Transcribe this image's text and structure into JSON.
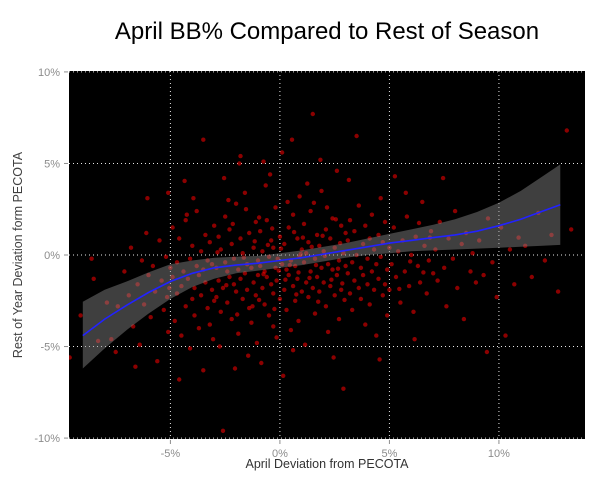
{
  "title": "April BB% Compared to Rest of Season",
  "chart_data": {
    "type": "scatter",
    "title": "April BB% Compared to Rest of Season",
    "xlabel": "April Deviation from PECOTA",
    "ylabel": "Rest of Year Deviation form PECOTA",
    "xlim": [
      -9.63,
      13.93
    ],
    "ylim": [
      -10.05,
      10.05
    ],
    "x_ticks": [
      {
        "value": -5,
        "label": "-5%"
      },
      {
        "value": 0,
        "label": "0%"
      },
      {
        "value": 5,
        "label": "5%"
      },
      {
        "value": 10,
        "label": "10%"
      }
    ],
    "y_ticks": [
      {
        "value": 10,
        "label": "10%"
      },
      {
        "value": 5,
        "label": "5%"
      },
      {
        "value": 0,
        "label": "0%"
      },
      {
        "value": -5,
        "label": "-5%"
      },
      {
        "value": -10,
        "label": "-10%"
      }
    ],
    "grid": "major-dotted-white",
    "legend": "none",
    "panel_background": "black",
    "smooth": {
      "type": "loess",
      "x": [
        -9.0,
        -8,
        -7,
        -6,
        -5,
        -4,
        -3,
        -2,
        -1,
        0,
        1,
        2,
        3,
        4,
        5,
        6,
        7,
        8,
        9,
        10,
        11,
        12,
        12.8
      ],
      "y": [
        -4.4,
        -3.5,
        -2.75,
        -2.05,
        -1.45,
        -1.0,
        -0.7,
        -0.55,
        -0.45,
        -0.3,
        -0.15,
        0.05,
        0.25,
        0.45,
        0.65,
        0.8,
        0.95,
        1.1,
        1.3,
        1.6,
        1.95,
        2.4,
        2.75
      ],
      "upper": [
        -2.55,
        -1.9,
        -1.45,
        -0.95,
        -0.5,
        -0.3,
        -0.15,
        -0.1,
        -0.05,
        0.1,
        0.25,
        0.45,
        0.65,
        0.9,
        1.15,
        1.4,
        1.65,
        1.95,
        2.35,
        2.85,
        3.5,
        4.3,
        4.95
      ],
      "lower": [
        -6.2,
        -5.1,
        -4.1,
        -3.2,
        -2.4,
        -1.75,
        -1.3,
        -1.0,
        -0.85,
        -0.7,
        -0.55,
        -0.35,
        -0.15,
        0.0,
        0.1,
        0.2,
        0.25,
        0.3,
        0.35,
        0.4,
        0.45,
        0.5,
        0.55
      ]
    },
    "points": [
      [
        -9.6,
        -5.6
      ],
      [
        -9.1,
        -3.3
      ],
      [
        -8.6,
        -0.2
      ],
      [
        -8.5,
        -1.3
      ],
      [
        -8.3,
        -4.7
      ],
      [
        -7.9,
        -2.6
      ],
      [
        -7.7,
        -4.6
      ],
      [
        -7.5,
        -5.3
      ],
      [
        -7.4,
        -2.8
      ],
      [
        -7.1,
        -0.9
      ],
      [
        -6.9,
        -2.2
      ],
      [
        -6.8,
        0.4
      ],
      [
        -6.7,
        -3.9
      ],
      [
        -6.6,
        -6.1
      ],
      [
        -6.5,
        -1.6
      ],
      [
        -6.4,
        -4.9
      ],
      [
        -6.3,
        -0.3
      ],
      [
        -6.2,
        -2.7
      ],
      [
        -6.1,
        1.2
      ],
      [
        -6.05,
        3.1
      ],
      [
        -6.0,
        -1.1
      ],
      [
        -5.9,
        -3.4
      ],
      [
        -5.8,
        -0.6
      ],
      [
        -5.7,
        -2.0
      ],
      [
        -5.6,
        -5.8
      ],
      [
        -5.5,
        0.8
      ],
      [
        -5.4,
        -1.4
      ],
      [
        -5.3,
        -3.0
      ],
      [
        -5.2,
        -0.1
      ],
      [
        -5.15,
        -2.3
      ],
      [
        -5.1,
        -4.2
      ],
      [
        -5.1,
        3.4
      ],
      [
        -5.05,
        -1.8
      ],
      [
        -5.0,
        -0.7
      ],
      [
        -4.9,
        -1.2
      ],
      [
        -4.9,
        1.5
      ],
      [
        -4.8,
        -3.6
      ],
      [
        -4.7,
        -0.4
      ],
      [
        -4.7,
        -2.1
      ],
      [
        -4.6,
        0.9
      ],
      [
        -4.6,
        -6.8
      ],
      [
        -4.5,
        -1.7
      ],
      [
        -4.5,
        -4.4
      ],
      [
        -4.4,
        -0.9
      ],
      [
        -4.35,
        4.05
      ],
      [
        -4.3,
        -2.8
      ],
      [
        -4.3,
        1.9
      ],
      [
        -4.25,
        2.2
      ],
      [
        -4.2,
        -1.3
      ],
      [
        -4.1,
        -0.2
      ],
      [
        -4.1,
        -5.1
      ],
      [
        -4.0,
        -2.4
      ],
      [
        -4.0,
        0.5
      ],
      [
        -3.95,
        3.1
      ],
      [
        -3.9,
        -1.8
      ],
      [
        -3.9,
        -3.3
      ],
      [
        -3.8,
        -0.6
      ],
      [
        -3.8,
        2.4
      ],
      [
        -3.7,
        -1.1
      ],
      [
        -3.7,
        -4.0
      ],
      [
        -3.6,
        0.2
      ],
      [
        -3.6,
        -2.2
      ],
      [
        -3.5,
        -0.8
      ],
      [
        -3.5,
        -6.3
      ],
      [
        -3.5,
        6.3
      ],
      [
        -3.4,
        1.1
      ],
      [
        -3.4,
        -1.5
      ],
      [
        -3.3,
        -2.9
      ],
      [
        -3.3,
        -0.3
      ],
      [
        -3.2,
        -3.8
      ],
      [
        -3.2,
        0.7
      ],
      [
        -3.1,
        -1.9
      ],
      [
        -3.1,
        -0.5
      ],
      [
        -3.05,
        -4.6
      ],
      [
        -3.0,
        -2.5
      ],
      [
        -3.0,
        1.6
      ],
      [
        -2.9,
        -0.7
      ],
      [
        -2.9,
        -2.3
      ],
      [
        -2.85,
        0.15
      ],
      [
        -2.8,
        1.0
      ],
      [
        -2.8,
        -1.4
      ],
      [
        -2.75,
        -5.0
      ],
      [
        -2.7,
        -3.1
      ],
      [
        -2.7,
        0.3
      ],
      [
        -2.6,
        -9.6
      ],
      [
        -2.6,
        -1.8
      ],
      [
        -2.55,
        4.2
      ],
      [
        -2.5,
        -0.4
      ],
      [
        -2.5,
        2.1
      ],
      [
        -2.45,
        -1.65
      ],
      [
        -2.4,
        -2.6
      ],
      [
        -2.4,
        -0.9
      ],
      [
        -2.35,
        3.0
      ],
      [
        -2.3,
        1.4
      ],
      [
        -2.3,
        -1.2
      ],
      [
        -2.2,
        -3.5
      ],
      [
        -2.2,
        0.6
      ],
      [
        -2.15,
        1.7
      ],
      [
        -2.1,
        -1.6
      ],
      [
        -2.1,
        -0.2
      ],
      [
        -2.05,
        -6.2
      ],
      [
        -2.0,
        -2.0
      ],
      [
        -2.0,
        2.8
      ],
      [
        -1.95,
        -3.25
      ],
      [
        -1.9,
        -0.8
      ],
      [
        -1.9,
        -4.3
      ],
      [
        -1.85,
        5.0
      ],
      [
        -1.8,
        0.9
      ],
      [
        -1.8,
        -1.3
      ],
      [
        -1.8,
        5.4
      ],
      [
        -1.7,
        -2.4
      ],
      [
        -1.7,
        0.1
      ],
      [
        -1.65,
        -0.15
      ],
      [
        -1.6,
        -1.0
      ],
      [
        -1.6,
        3.4
      ],
      [
        -1.55,
        2.5
      ],
      [
        -1.5,
        -1.9
      ],
      [
        -1.5,
        -0.5
      ],
      [
        -1.45,
        -5.5
      ],
      [
        -1.4,
        -2.9
      ],
      [
        -1.4,
        1.2
      ],
      [
        -1.3,
        -0.7
      ],
      [
        -1.3,
        -3.7
      ],
      [
        -1.25,
        -2.8
      ],
      [
        -1.2,
        0.4
      ],
      [
        -1.2,
        -1.5
      ],
      [
        -1.15,
        0.75
      ],
      [
        -1.1,
        -2.2
      ],
      [
        -1.1,
        1.8
      ],
      [
        -1.05,
        -4.8
      ],
      [
        -1.0,
        -0.3
      ],
      [
        -1.0,
        -1.1
      ],
      [
        -0.95,
        -2.45
      ],
      [
        -0.95,
        2.05
      ],
      [
        -0.9,
        -0.6
      ],
      [
        -0.9,
        1.3
      ],
      [
        -0.85,
        -5.9
      ],
      [
        -0.8,
        -1.8
      ],
      [
        -0.8,
        0.2
      ],
      [
        -0.75,
        -1.05
      ],
      [
        -0.75,
        5.1
      ],
      [
        -0.7,
        -2.7
      ],
      [
        -0.7,
        -0.9
      ],
      [
        -0.65,
        3.8
      ],
      [
        -0.6,
        1.9
      ],
      [
        -0.6,
        -1.2
      ],
      [
        -0.55,
        0.55
      ],
      [
        -0.5,
        -0.1
      ],
      [
        -0.5,
        -3.3
      ],
      [
        -0.45,
        4.4
      ],
      [
        -0.4,
        0.8
      ],
      [
        -0.4,
        -1.6
      ],
      [
        -0.35,
        1.45
      ],
      [
        -0.3,
        -2.1
      ],
      [
        -0.3,
        0.4
      ],
      [
        -0.3,
        -3.9
      ],
      [
        -0.25,
        -2.95
      ],
      [
        -0.2,
        -0.7
      ],
      [
        -0.2,
        2.6
      ],
      [
        -0.15,
        -1.4
      ],
      [
        -0.15,
        -4.5
      ],
      [
        -0.1,
        -0.2
      ],
      [
        -0.05,
        -0.85
      ],
      [
        0.0,
        1.0
      ],
      [
        0.0,
        -2.4
      ],
      [
        0.05,
        0.35
      ],
      [
        0.1,
        -0.5
      ],
      [
        0.1,
        5.6
      ],
      [
        0.15,
        -6.6
      ],
      [
        0.2,
        -1.9
      ],
      [
        0.2,
        0.6
      ],
      [
        0.25,
        -1.35
      ],
      [
        0.3,
        -3.0
      ],
      [
        0.3,
        -0.8
      ],
      [
        0.35,
        2.9
      ],
      [
        0.4,
        1.5
      ],
      [
        0.4,
        -1.1
      ],
      [
        0.45,
        -0.55
      ],
      [
        0.5,
        -0.3
      ],
      [
        0.5,
        -4.1
      ],
      [
        0.55,
        6.3
      ],
      [
        0.6,
        2.2
      ],
      [
        0.6,
        -1.7
      ],
      [
        0.6,
        -5.2
      ],
      [
        0.65,
        1.25
      ],
      [
        0.7,
        -0.6
      ],
      [
        0.7,
        -2.5
      ],
      [
        0.75,
        -2.15
      ],
      [
        0.8,
        0.9
      ],
      [
        0.8,
        -1.3
      ],
      [
        0.85,
        -3.6
      ],
      [
        0.85,
        -0.95
      ],
      [
        0.9,
        -0.1
      ],
      [
        0.9,
        3.2
      ],
      [
        0.95,
        0.05
      ],
      [
        1.0,
        -2.0
      ],
      [
        1.0,
        0.3
      ],
      [
        1.05,
        0.95
      ],
      [
        1.1,
        -0.4
      ],
      [
        1.1,
        1.7
      ],
      [
        1.15,
        -4.9
      ],
      [
        1.2,
        -1.5
      ],
      [
        1.2,
        0.1
      ],
      [
        1.25,
        3.9
      ],
      [
        1.3,
        -2.3
      ],
      [
        1.3,
        0.7
      ],
      [
        1.35,
        -1.25
      ],
      [
        1.4,
        -0.9
      ],
      [
        1.4,
        2.4
      ],
      [
        1.45,
        0.45
      ],
      [
        1.5,
        -1.8
      ],
      [
        1.5,
        7.7
      ],
      [
        1.55,
        2.85
      ],
      [
        1.6,
        -0.2
      ],
      [
        1.6,
        -3.2
      ],
      [
        1.65,
        -0.55
      ],
      [
        1.7,
        1.1
      ],
      [
        1.7,
        -1.2
      ],
      [
        1.75,
        -2.55
      ],
      [
        1.8,
        -2.0
      ],
      [
        1.8,
        0.5
      ],
      [
        1.85,
        5.2
      ],
      [
        1.9,
        -0.7
      ],
      [
        1.9,
        3.5
      ],
      [
        1.95,
        1.05
      ],
      [
        2.0,
        -1.5
      ],
      [
        2.0,
        0.2
      ],
      [
        2.05,
        -0.05
      ],
      [
        2.1,
        -2.8
      ],
      [
        2.1,
        1.4
      ],
      [
        2.15,
        2.6
      ],
      [
        2.2,
        -0.5
      ],
      [
        2.2,
        -4.2
      ],
      [
        2.3,
        0.9
      ],
      [
        2.3,
        -1.7
      ],
      [
        2.35,
        -1.35
      ],
      [
        2.4,
        2.0
      ],
      [
        2.4,
        -0.8
      ],
      [
        2.45,
        -5.6
      ],
      [
        2.5,
        -2.2
      ],
      [
        2.5,
        0.4
      ],
      [
        2.55,
        1.95
      ],
      [
        2.6,
        -1.1
      ],
      [
        2.6,
        4.6
      ],
      [
        2.65,
        -0.75
      ],
      [
        2.7,
        -0.3
      ],
      [
        2.7,
        -3.5
      ],
      [
        2.75,
        0.65
      ],
      [
        2.8,
        1.6
      ],
      [
        2.8,
        -1.9
      ],
      [
        2.85,
        -1.55
      ],
      [
        2.9,
        0.1
      ],
      [
        2.9,
        -7.3
      ],
      [
        2.95,
        -2.45
      ],
      [
        3.0,
        -0.6
      ],
      [
        3.0,
        1.2
      ],
      [
        3.1,
        -1.0
      ],
      [
        3.1,
        0.8
      ],
      [
        3.15,
        4.1
      ],
      [
        3.2,
        -2.1
      ],
      [
        3.2,
        1.9
      ],
      [
        3.3,
        -0.4
      ],
      [
        3.3,
        -3.0
      ],
      [
        3.4,
        1.3
      ],
      [
        3.4,
        -1.4
      ],
      [
        3.5,
        6.5
      ],
      [
        3.5,
        0.0
      ],
      [
        3.6,
        -1.8
      ],
      [
        3.6,
        2.7
      ],
      [
        3.7,
        -0.7
      ],
      [
        3.7,
        -2.4
      ],
      [
        3.8,
        0.6
      ],
      [
        3.8,
        -1.1
      ],
      [
        3.9,
        1.6
      ],
      [
        3.9,
        -3.8
      ],
      [
        4.0,
        -0.2
      ],
      [
        4.0,
        -1.6
      ],
      [
        4.1,
        0.9
      ],
      [
        4.1,
        -2.7
      ],
      [
        4.2,
        2.2
      ],
      [
        4.2,
        -0.9
      ],
      [
        4.3,
        -1.9
      ],
      [
        4.3,
        0.3
      ],
      [
        4.4,
        -0.5
      ],
      [
        4.4,
        -4.4
      ],
      [
        4.5,
        1.1
      ],
      [
        4.5,
        -1.3
      ],
      [
        4.55,
        -5.7
      ],
      [
        4.6,
        3.1
      ],
      [
        4.6,
        -0.1
      ],
      [
        4.7,
        -2.2
      ],
      [
        4.7,
        0.7
      ],
      [
        4.8,
        -1.6
      ],
      [
        4.8,
        1.8
      ],
      [
        4.9,
        -0.8
      ],
      [
        4.9,
        -3.3
      ],
      [
        5.0,
        0.4
      ],
      [
        5.0,
        -1.9
      ],
      [
        5.1,
        -0.5
      ],
      [
        5.2,
        1.5
      ],
      [
        5.25,
        4.3
      ],
      [
        5.3,
        -1.2
      ],
      [
        5.4,
        0.2
      ],
      [
        5.45,
        -1.85
      ],
      [
        5.5,
        -2.6
      ],
      [
        5.6,
        0.8
      ],
      [
        5.7,
        -0.9
      ],
      [
        5.75,
        3.4
      ],
      [
        5.8,
        2.1
      ],
      [
        5.9,
        -1.7
      ],
      [
        5.95,
        -0.35
      ],
      [
        6.0,
        0.0
      ],
      [
        6.1,
        -3.1
      ],
      [
        6.15,
        -4.6
      ],
      [
        6.2,
        1.0
      ],
      [
        6.3,
        -0.6
      ],
      [
        6.35,
        1.75
      ],
      [
        6.4,
        -1.5
      ],
      [
        6.5,
        2.9
      ],
      [
        6.55,
        -0.95
      ],
      [
        6.6,
        0.5
      ],
      [
        6.7,
        -2.1
      ],
      [
        6.8,
        -0.3
      ],
      [
        6.85,
        0.95
      ],
      [
        6.9,
        1.3
      ],
      [
        7.0,
        -1.0
      ],
      [
        7.1,
        0.3
      ],
      [
        7.2,
        -1.4
      ],
      [
        7.3,
        1.8
      ],
      [
        7.45,
        4.2
      ],
      [
        7.5,
        -0.7
      ],
      [
        7.6,
        -2.8
      ],
      [
        7.7,
        0.9
      ],
      [
        7.9,
        -0.2
      ],
      [
        8.0,
        2.4
      ],
      [
        8.1,
        -1.8
      ],
      [
        8.3,
        0.6
      ],
      [
        8.4,
        -3.5
      ],
      [
        8.5,
        1.2
      ],
      [
        8.7,
        -0.9
      ],
      [
        8.8,
        0.1
      ],
      [
        8.95,
        -1.5
      ],
      [
        9.1,
        0.8
      ],
      [
        9.3,
        -1.1
      ],
      [
        9.45,
        -5.3
      ],
      [
        9.5,
        2.0
      ],
      [
        9.7,
        -0.4
      ],
      [
        9.9,
        -2.3
      ],
      [
        10.1,
        1.5
      ],
      [
        10.3,
        -4.4
      ],
      [
        10.5,
        0.3
      ],
      [
        10.7,
        -1.6
      ],
      [
        10.9,
        0.95
      ],
      [
        11.2,
        0.5
      ],
      [
        11.5,
        -1.2
      ],
      [
        11.8,
        2.3
      ],
      [
        12.1,
        -0.3
      ],
      [
        12.4,
        1.1
      ],
      [
        12.7,
        -2.0
      ],
      [
        13.1,
        6.8
      ],
      [
        13.3,
        1.4
      ]
    ]
  },
  "colors": {
    "background": "#ffffff",
    "panel": "#000000",
    "gridline": "#ffffff",
    "point": "#ff0000",
    "smooth_line": "#2222ff",
    "confidence_band": "#8c8c8c",
    "title_text": "#000000",
    "axis_title_text": "#3a3a3a",
    "tick_text": "#8c8c8c",
    "tick_mark": "#8c8c8c"
  }
}
